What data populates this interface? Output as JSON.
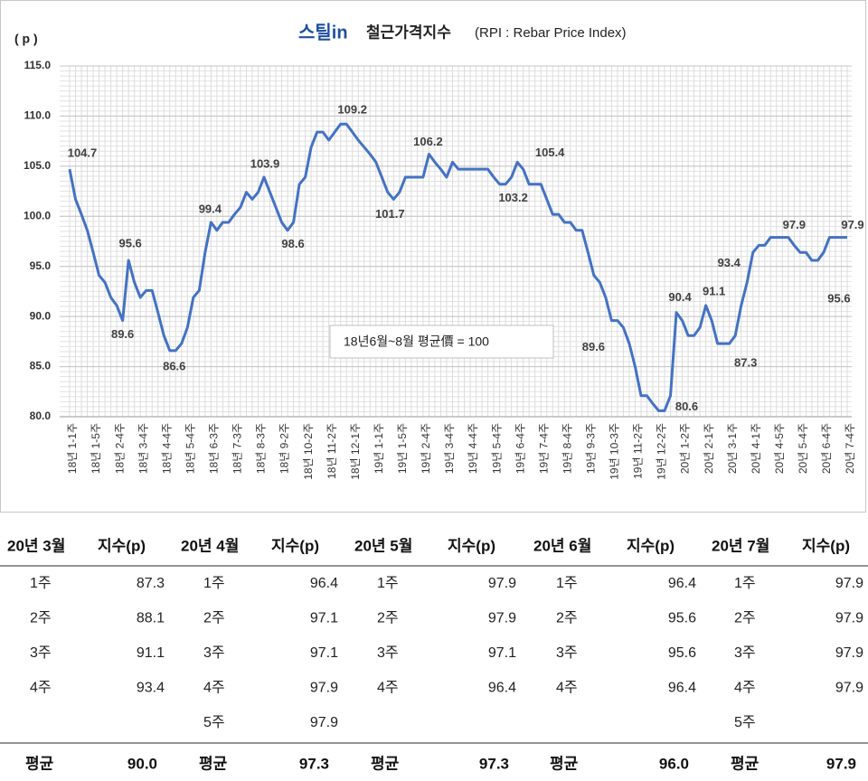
{
  "chart_data": {
    "type": "line",
    "logo": "스틸in",
    "title": "철근가격지수",
    "subtitle": "(RPI : Rebar Price Index)",
    "y_label": "( p )",
    "annotation": "18년6월~8월 평균價 = 100",
    "categories": [
      "18년 1-1주",
      null,
      null,
      null,
      "18년 1-5주",
      null,
      null,
      null,
      "18년 2-4주",
      null,
      null,
      null,
      "18년 3-4주",
      null,
      null,
      null,
      "18년 4-4주",
      null,
      null,
      null,
      "18년 5-4주",
      null,
      null,
      null,
      "18년 6-3주",
      null,
      null,
      null,
      "18년 7-3주",
      null,
      null,
      null,
      "18년 8-3주",
      null,
      null,
      null,
      "18년 9-2주",
      null,
      null,
      null,
      "18년 10-2주",
      null,
      null,
      null,
      "18년 11-2주",
      null,
      null,
      null,
      "18년 12-1주",
      null,
      null,
      null,
      "19년 1-1주",
      null,
      null,
      null,
      "19년 1-5주",
      null,
      null,
      null,
      "19년 2-4주",
      null,
      null,
      null,
      "19년 3-4주",
      null,
      null,
      null,
      "19년 4-4주",
      null,
      null,
      null,
      "19년 5-4주",
      null,
      null,
      null,
      "19년 6-4주",
      null,
      null,
      null,
      "19년 7-4주",
      null,
      null,
      null,
      "19년 8-4주",
      null,
      null,
      null,
      "19년 9-3주",
      null,
      null,
      null,
      "19년 10-3주",
      null,
      null,
      null,
      "19년 11-2주",
      null,
      null,
      null,
      "19년 12-2주",
      null,
      null,
      null,
      "20년 1-2주",
      null,
      null,
      null,
      "20년 2-1주",
      null,
      null,
      null,
      "20년 3-1주",
      null,
      null,
      null,
      "20년 4-1주",
      null,
      null,
      null,
      "20년 4-5주",
      null,
      null,
      null,
      "20년 5-4주",
      null,
      null,
      null,
      "20년 6-4주",
      null,
      null,
      null,
      "20년 7-4주"
    ],
    "series": [
      {
        "name": "RPI",
        "color": "#4472c4",
        "values": [
          104.7,
          101.7,
          100.2,
          98.6,
          96.4,
          94.1,
          93.4,
          91.9,
          91.1,
          89.6,
          95.6,
          93.4,
          91.9,
          92.6,
          92.6,
          90.4,
          88.1,
          86.6,
          86.6,
          87.3,
          88.9,
          91.9,
          92.6,
          96.4,
          99.4,
          98.6,
          99.4,
          99.4,
          100.2,
          100.9,
          102.4,
          101.7,
          102.4,
          103.9,
          102.4,
          100.9,
          99.4,
          98.6,
          99.4,
          103.2,
          103.9,
          106.9,
          108.4,
          108.4,
          107.6,
          108.4,
          109.2,
          109.2,
          108.4,
          107.6,
          106.9,
          106.2,
          105.4,
          103.9,
          102.4,
          101.7,
          102.4,
          103.9,
          103.9,
          103.9,
          103.9,
          106.2,
          105.4,
          104.7,
          103.9,
          105.4,
          104.7,
          104.7,
          104.7,
          104.7,
          104.7,
          104.7,
          103.9,
          103.2,
          103.2,
          103.9,
          105.4,
          104.7,
          103.2,
          103.2,
          103.2,
          101.7,
          100.2,
          100.2,
          99.4,
          99.4,
          98.6,
          98.6,
          96.4,
          94.1,
          93.4,
          91.9,
          89.6,
          89.6,
          88.9,
          87.3,
          85.0,
          82.1,
          82.1,
          81.3,
          80.6,
          80.6,
          82.1,
          90.4,
          89.6,
          88.1,
          88.1,
          88.9,
          91.1,
          89.6,
          87.3,
          87.3,
          87.3,
          88.1,
          91.1,
          93.4,
          96.4,
          97.1,
          97.1,
          97.9,
          97.9,
          97.9,
          97.9,
          97.1,
          96.4,
          96.4,
          95.6,
          95.6,
          96.4,
          97.9,
          97.9,
          97.9,
          97.9
        ],
        "value_labels": [
          "104.7",
          null,
          null,
          null,
          null,
          null,
          null,
          null,
          null,
          "89.6",
          "95.6",
          null,
          null,
          null,
          null,
          null,
          null,
          "86.6",
          null,
          null,
          null,
          null,
          null,
          null,
          "99.4",
          null,
          null,
          null,
          null,
          null,
          null,
          null,
          null,
          "103.9",
          null,
          null,
          null,
          "98.6",
          null,
          null,
          null,
          null,
          null,
          null,
          null,
          null,
          "109.2",
          null,
          null,
          null,
          null,
          null,
          null,
          null,
          null,
          "101.7",
          null,
          null,
          null,
          null,
          null,
          "106.2",
          null,
          null,
          null,
          null,
          null,
          null,
          null,
          null,
          null,
          null,
          null,
          "103.2",
          null,
          null,
          "105.4",
          null,
          null,
          null,
          null,
          null,
          null,
          null,
          null,
          null,
          null,
          null,
          null,
          null,
          null,
          null,
          "89.6",
          null,
          null,
          null,
          null,
          null,
          null,
          null,
          "80.6",
          null,
          null,
          "90.4",
          null,
          null,
          null,
          null,
          "91.1",
          null,
          null,
          null,
          "87.3",
          null,
          null,
          "93.4",
          null,
          null,
          null,
          null,
          null,
          "97.9",
          null,
          null,
          null,
          null,
          "95.6",
          null,
          null,
          null,
          null,
          null,
          "97.9"
        ]
      }
    ],
    "ylim": [
      80,
      115
    ],
    "yticks": [
      {
        "value": 80,
        "label": "80.0"
      },
      {
        "value": 85,
        "label": "85.0"
      },
      {
        "value": 90,
        "label": "90.0"
      },
      {
        "value": 95,
        "label": "95.0"
      },
      {
        "value": 100,
        "label": "100.0"
      },
      {
        "value": 105,
        "label": "105.0"
      },
      {
        "value": 110,
        "label": "110.0"
      },
      {
        "value": 115,
        "label": "115.0"
      }
    ],
    "grid": true
  },
  "table": {
    "columns": [
      {
        "month": "20년 3월",
        "index_header": "지수(p)",
        "rows": [
          {
            "week": "1주",
            "value": "87.3"
          },
          {
            "week": "2주",
            "value": "88.1"
          },
          {
            "week": "3주",
            "value": "91.1"
          },
          {
            "week": "4주",
            "value": "93.4"
          }
        ],
        "avg_label": "평균",
        "avg": "90.0"
      },
      {
        "month": "20년 4월",
        "index_header": "지수(p)",
        "rows": [
          {
            "week": "1주",
            "value": "96.4"
          },
          {
            "week": "2주",
            "value": "97.1"
          },
          {
            "week": "3주",
            "value": "97.1"
          },
          {
            "week": "4주",
            "value": "97.9"
          },
          {
            "week": "5주",
            "value": "97.9"
          }
        ],
        "avg_label": "평균",
        "avg": "97.3"
      },
      {
        "month": "20년 5월",
        "index_header": "지수(p)",
        "rows": [
          {
            "week": "1주",
            "value": "97.9"
          },
          {
            "week": "2주",
            "value": "97.9"
          },
          {
            "week": "3주",
            "value": "97.1"
          },
          {
            "week": "4주",
            "value": "96.4"
          }
        ],
        "avg_label": "평균",
        "avg": "97.3"
      },
      {
        "month": "20년 6월",
        "index_header": "지수(p)",
        "rows": [
          {
            "week": "1주",
            "value": "96.4"
          },
          {
            "week": "2주",
            "value": "95.6"
          },
          {
            "week": "3주",
            "value": "95.6"
          },
          {
            "week": "4주",
            "value": "96.4"
          }
        ],
        "avg_label": "평균",
        "avg": "96.0"
      },
      {
        "month": "20년 7월",
        "index_header": "지수(p)",
        "rows": [
          {
            "week": "1주",
            "value": "97.9"
          },
          {
            "week": "2주",
            "value": "97.9"
          },
          {
            "week": "3주",
            "value": "97.9"
          },
          {
            "week": "4주",
            "value": "97.9"
          },
          {
            "week": "5주"
          }
        ],
        "avg_label": "평균",
        "avg": "97.9"
      }
    ]
  }
}
